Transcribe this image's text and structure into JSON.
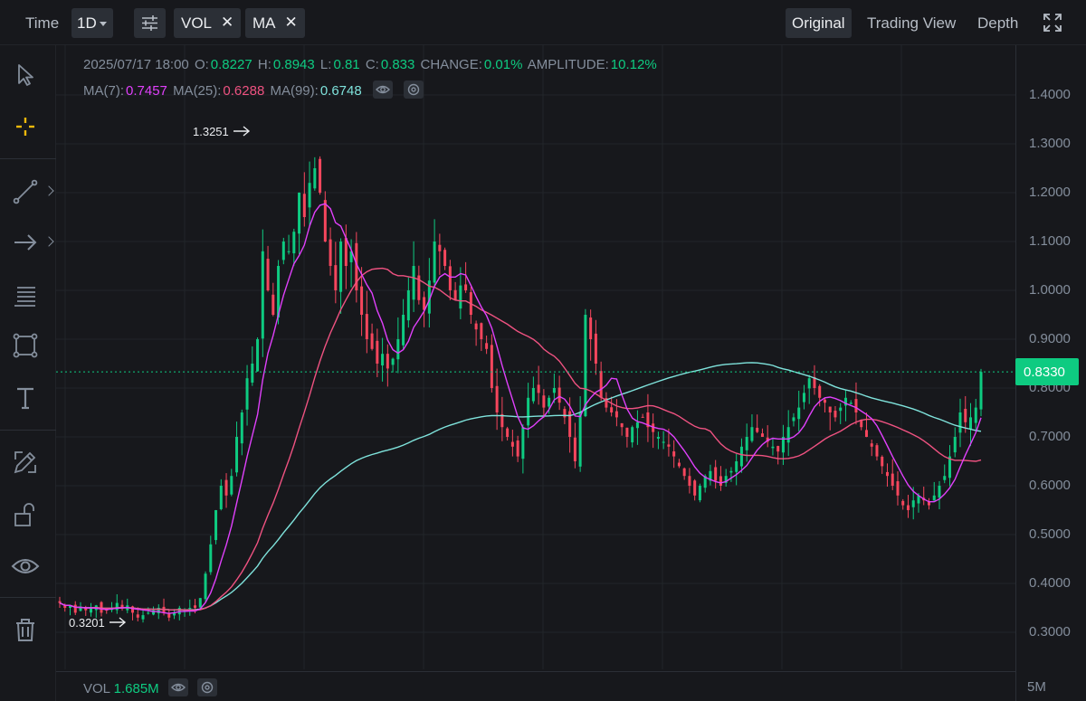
{
  "toolbar": {
    "time_label": "Time",
    "interval": "1D",
    "indicators": [
      {
        "label": "VOL",
        "close": "✕"
      },
      {
        "label": "MA",
        "close": "✕"
      }
    ],
    "views": [
      "Original",
      "Trading View",
      "Depth"
    ],
    "active_view": "Original",
    "icons": [
      "settings-sliders-icon",
      "fullscreen-icon"
    ]
  },
  "left_tools": [
    "cursor-icon",
    "crosshair-icon",
    "trend-line-icon",
    "arrow-icon",
    "fib-lines-icon",
    "rectangle-icon",
    "text-icon",
    "pencil-ruler-icon",
    "unlock-icon",
    "eye-icon",
    "trash-icon"
  ],
  "info": {
    "datetime": "2025/07/17 18:00",
    "o_label": "O:",
    "o": "0.8227",
    "h_label": "H:",
    "h": "0.8943",
    "l_label": "L:",
    "l": "0.81",
    "c_label": "C:",
    "c": "0.833",
    "change_label": "CHANGE:",
    "change": "0.01%",
    "amp_label": "AMPLITUDE:",
    "amp": "10.12%",
    "ma7_label": "MA(7):",
    "ma7": "0.7457",
    "ma25_label": "MA(25):",
    "ma25": "0.6288",
    "ma99_label": "MA(99):",
    "ma99": "0.6748"
  },
  "price_scale": [
    "1.4000",
    "1.3000",
    "1.2000",
    "1.1000",
    "1.0000",
    "0.9000",
    "0.8000",
    "0.7000",
    "0.6000",
    "0.5000",
    "0.4000",
    "0.3000"
  ],
  "last_price": "0.8330",
  "annotations": {
    "high": "1.3251",
    "low": "0.3201"
  },
  "volume": {
    "label": "VOL",
    "value": "1.685M",
    "scale": "5M"
  },
  "colors": {
    "up": "#0ecb81",
    "down": "#f6465d",
    "ma7": "#e040fb",
    "ma25": "#ef5281",
    "ma99": "#7fe3dc",
    "background": "#17181c"
  },
  "chart_data": {
    "type": "candlestick",
    "interval": "1D",
    "price_ylim": [
      0.25,
      1.45
    ],
    "ma_periods": [
      7,
      25,
      99
    ],
    "closes": [
      0.36,
      0.35,
      0.355,
      0.34,
      0.35,
      0.345,
      0.35,
      0.355,
      0.34,
      0.345,
      0.35,
      0.36,
      0.35,
      0.355,
      0.34,
      0.33,
      0.335,
      0.34,
      0.345,
      0.35,
      0.34,
      0.33,
      0.34,
      0.35,
      0.345,
      0.35,
      0.35,
      0.37,
      0.42,
      0.48,
      0.55,
      0.6,
      0.58,
      0.62,
      0.7,
      0.75,
      0.82,
      0.85,
      0.9,
      1.08,
      1.0,
      0.95,
      1.05,
      1.1,
      1.08,
      1.12,
      1.2,
      1.15,
      1.22,
      1.25,
      1.2,
      1.1,
      1.05,
      1.0,
      1.1,
      1.05,
      1.08,
      1.0,
      0.95,
      0.9,
      0.88,
      0.85,
      0.87,
      0.84,
      0.86,
      0.9,
      0.95,
      1.0,
      1.05,
      0.98,
      0.96,
      1.02,
      1.1,
      1.08,
      1.05,
      1.0,
      0.98,
      1.01,
      1.0,
      0.95,
      0.92,
      0.9,
      0.88,
      0.8,
      0.75,
      0.72,
      0.7,
      0.68,
      0.66,
      0.72,
      0.78,
      0.8,
      0.79,
      0.76,
      0.78,
      0.8,
      0.77,
      0.74,
      0.7,
      0.65,
      0.75,
      0.95,
      0.9,
      0.85,
      0.78,
      0.76,
      0.75,
      0.74,
      0.72,
      0.7,
      0.72,
      0.73,
      0.74,
      0.72,
      0.71,
      0.7,
      0.69,
      0.68,
      0.66,
      0.64,
      0.62,
      0.6,
      0.58,
      0.6,
      0.62,
      0.63,
      0.61,
      0.6,
      0.62,
      0.63,
      0.65,
      0.68,
      0.7,
      0.72,
      0.71,
      0.7,
      0.69,
      0.68,
      0.67,
      0.7,
      0.72,
      0.74,
      0.76,
      0.79,
      0.82,
      0.8,
      0.78,
      0.77,
      0.75,
      0.74,
      0.76,
      0.78,
      0.77,
      0.75,
      0.72,
      0.7,
      0.68,
      0.66,
      0.64,
      0.62,
      0.6,
      0.58,
      0.56,
      0.55,
      0.57,
      0.58,
      0.57,
      0.56,
      0.58,
      0.6,
      0.62,
      0.66,
      0.7,
      0.75,
      0.73,
      0.74,
      0.76,
      0.833
    ]
  }
}
